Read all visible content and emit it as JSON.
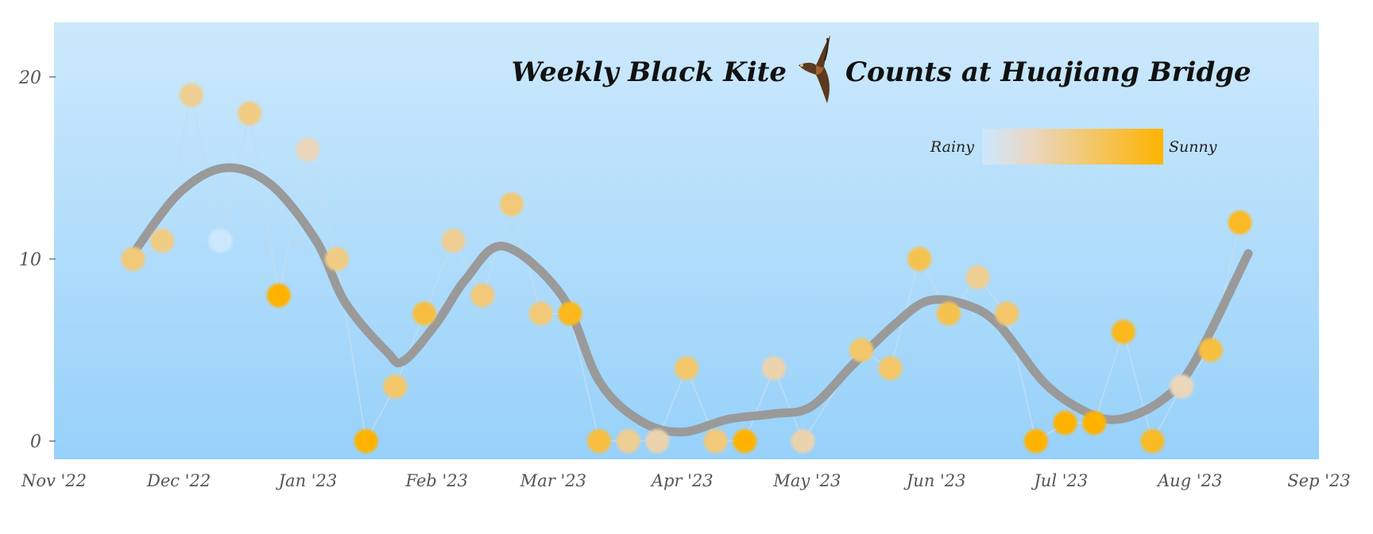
{
  "chart_data": {
    "type": "scatter",
    "title_left": "Weekly Black Kite",
    "title_right": "Counts at Huajiang Bridge",
    "title_icon": "black-kite-bird-icon",
    "xlabel": "",
    "ylabel": "",
    "xlim": [
      "2022-11-01",
      "2023-09-01"
    ],
    "ylim": [
      -1,
      23
    ],
    "x_ticks": [
      "2022-11-01",
      "2022-12-01",
      "2023-01-01",
      "2023-02-01",
      "2023-03-01",
      "2023-04-01",
      "2023-05-01",
      "2023-06-01",
      "2023-07-01",
      "2023-08-01",
      "2023-09-01"
    ],
    "x_tick_labels": [
      "Nov '22",
      "Dec '22",
      "Jan '23",
      "Feb '23",
      "Mar '23",
      "Apr '23",
      "May '23",
      "Jun '23",
      "Jul '23",
      "Aug '23",
      "Sep '23"
    ],
    "y_ticks": [
      0,
      10,
      20
    ],
    "y_tick_labels": [
      "0",
      "10",
      "20"
    ],
    "grid": false,
    "legend": {
      "placement": "top-right",
      "type": "colorbar",
      "low_label": "Rainy",
      "high_label": "Sunny",
      "low_color": "#cce8ff",
      "mid_color": "#e8d8c8",
      "high_color": "#ffb300"
    },
    "background_gradient": [
      "#cce9fc",
      "#97d1fa"
    ],
    "trend_color": "#9a9a9a",
    "line_color": "#c2ddef",
    "series": [
      {
        "marker": "circle",
        "points": [
          {
            "x": "2022-11-20",
            "y": 10,
            "sun": 0.55
          },
          {
            "x": "2022-11-27",
            "y": 11,
            "sun": 0.5
          },
          {
            "x": "2022-12-04",
            "y": 19,
            "sun": 0.45
          },
          {
            "x": "2022-12-11",
            "y": 11,
            "sun": 0.0
          },
          {
            "x": "2022-12-18",
            "y": 18,
            "sun": 0.5
          },
          {
            "x": "2022-12-25",
            "y": 8,
            "sun": 1.0
          },
          {
            "x": "2023-01-01",
            "y": 16,
            "sun": 0.3
          },
          {
            "x": "2023-01-08",
            "y": 10,
            "sun": 0.5
          },
          {
            "x": "2023-01-15",
            "y": 0,
            "sun": 1.0
          },
          {
            "x": "2023-01-22",
            "y": 3,
            "sun": 0.6
          },
          {
            "x": "2023-01-29",
            "y": 7,
            "sun": 0.75
          },
          {
            "x": "2023-02-05",
            "y": 11,
            "sun": 0.45
          },
          {
            "x": "2023-02-12",
            "y": 8,
            "sun": 0.55
          },
          {
            "x": "2023-02-19",
            "y": 13,
            "sun": 0.55
          },
          {
            "x": "2023-02-26",
            "y": 7,
            "sun": 0.55
          },
          {
            "x": "2023-03-05",
            "y": 7,
            "sun": 0.9
          },
          {
            "x": "2023-03-12",
            "y": 0,
            "sun": 0.75
          },
          {
            "x": "2023-03-19",
            "y": 0,
            "sun": 0.45
          },
          {
            "x": "2023-03-26",
            "y": 0,
            "sun": 0.35
          },
          {
            "x": "2023-04-02",
            "y": 4,
            "sun": 0.6
          },
          {
            "x": "2023-04-09",
            "y": 0,
            "sun": 0.55
          },
          {
            "x": "2023-04-16",
            "y": 0,
            "sun": 1.0
          },
          {
            "x": "2023-04-23",
            "y": 4,
            "sun": 0.35
          },
          {
            "x": "2023-04-30",
            "y": 0,
            "sun": 0.35
          },
          {
            "x": "2023-05-14",
            "y": 5,
            "sun": 0.6
          },
          {
            "x": "2023-05-21",
            "y": 4,
            "sun": 0.6
          },
          {
            "x": "2023-05-28",
            "y": 10,
            "sun": 0.7
          },
          {
            "x": "2023-06-04",
            "y": 7,
            "sun": 0.7
          },
          {
            "x": "2023-06-11",
            "y": 9,
            "sun": 0.45
          },
          {
            "x": "2023-06-18",
            "y": 7,
            "sun": 0.6
          },
          {
            "x": "2023-06-25",
            "y": 0,
            "sun": 1.0
          },
          {
            "x": "2023-07-02",
            "y": 1,
            "sun": 1.0
          },
          {
            "x": "2023-07-09",
            "y": 1,
            "sun": 1.0
          },
          {
            "x": "2023-07-16",
            "y": 6,
            "sun": 0.9
          },
          {
            "x": "2023-07-23",
            "y": 0,
            "sun": 0.85
          },
          {
            "x": "2023-07-30",
            "y": 3,
            "sun": 0.3
          },
          {
            "x": "2023-08-06",
            "y": 5,
            "sun": 0.75
          },
          {
            "x": "2023-08-13",
            "y": 12,
            "sun": 0.85
          }
        ]
      }
    ],
    "trend": [
      {
        "x": "2022-11-20",
        "y": 10.3
      },
      {
        "x": "2022-12-01",
        "y": 13.6
      },
      {
        "x": "2022-12-12",
        "y": 15.0
      },
      {
        "x": "2022-12-23",
        "y": 14.1
      },
      {
        "x": "2023-01-03",
        "y": 11.0
      },
      {
        "x": "2023-01-10",
        "y": 7.6
      },
      {
        "x": "2023-01-20",
        "y": 4.9
      },
      {
        "x": "2023-01-24",
        "y": 4.4
      },
      {
        "x": "2023-02-01",
        "y": 6.5
      },
      {
        "x": "2023-02-08",
        "y": 8.9
      },
      {
        "x": "2023-02-17",
        "y": 10.7
      },
      {
        "x": "2023-03-03",
        "y": 8.0
      },
      {
        "x": "2023-03-12",
        "y": 3.3
      },
      {
        "x": "2023-03-22",
        "y": 1.1
      },
      {
        "x": "2023-04-01",
        "y": 0.5
      },
      {
        "x": "2023-04-12",
        "y": 1.2
      },
      {
        "x": "2023-04-23",
        "y": 1.5
      },
      {
        "x": "2023-05-02",
        "y": 1.9
      },
      {
        "x": "2023-05-12",
        "y": 4.2
      },
      {
        "x": "2023-05-22",
        "y": 6.4
      },
      {
        "x": "2023-05-30",
        "y": 7.7
      },
      {
        "x": "2023-06-08",
        "y": 7.5
      },
      {
        "x": "2023-06-16",
        "y": 6.4
      },
      {
        "x": "2023-06-27",
        "y": 3.2
      },
      {
        "x": "2023-07-07",
        "y": 1.6
      },
      {
        "x": "2023-07-15",
        "y": 1.2
      },
      {
        "x": "2023-07-25",
        "y": 2.2
      },
      {
        "x": "2023-08-02",
        "y": 4.3
      },
      {
        "x": "2023-08-15",
        "y": 10.3
      }
    ]
  }
}
